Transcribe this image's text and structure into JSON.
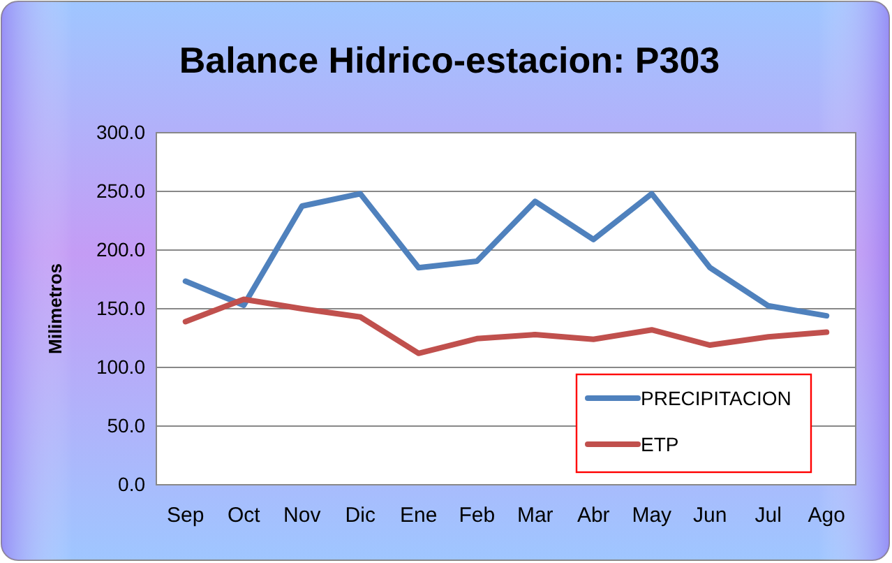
{
  "chart_data": {
    "type": "line",
    "title": "Balance Hidrico-estacion: P303",
    "ylabel": "Milimetros",
    "categories": [
      "Sep",
      "Oct",
      "Nov",
      "Dic",
      "Ene",
      "Feb",
      "Mar",
      "Abr",
      "May",
      "Jun",
      "Jul",
      "Ago"
    ],
    "series": [
      {
        "name": "PRECIPITACION",
        "color": "#4f81bd",
        "values": [
          173.5,
          153,
          237.5,
          248,
          185,
          190.5,
          241.5,
          209,
          248,
          185,
          152.5,
          144
        ]
      },
      {
        "name": "ETP",
        "color": "#c0504d",
        "values": [
          139,
          158,
          150,
          143,
          112,
          124.5,
          128,
          124,
          132,
          119,
          126,
          130
        ]
      }
    ],
    "ylim": [
      0,
      300
    ],
    "yticks": [
      {
        "value": 0,
        "label": "0.0"
      },
      {
        "value": 50,
        "label": "50.0"
      },
      {
        "value": 100,
        "label": "100.0"
      },
      {
        "value": 150,
        "label": "150.0"
      },
      {
        "value": 200,
        "label": "200.0"
      },
      {
        "value": 250,
        "label": "250.0"
      },
      {
        "value": 300,
        "label": "300.0"
      }
    ],
    "grid": "y",
    "legend": "bottom right",
    "marker": "none",
    "line_style": "solid"
  }
}
